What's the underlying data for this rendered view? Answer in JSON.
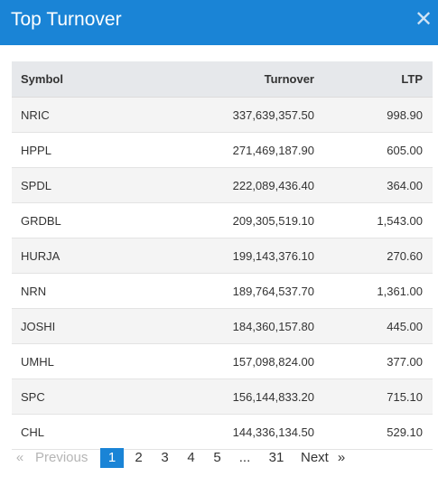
{
  "dialog": {
    "title": "Top Turnover",
    "close_icon": "close-icon"
  },
  "table": {
    "headers": {
      "symbol": "Symbol",
      "turnover": "Turnover",
      "ltp": "LTP"
    },
    "rows": [
      {
        "symbol": "NRIC",
        "turnover": "337,639,357.50",
        "ltp": "998.90"
      },
      {
        "symbol": "HPPL",
        "turnover": "271,469,187.90",
        "ltp": "605.00"
      },
      {
        "symbol": "SPDL",
        "turnover": "222,089,436.40",
        "ltp": "364.00"
      },
      {
        "symbol": "GRDBL",
        "turnover": "209,305,519.10",
        "ltp": "1,543.00"
      },
      {
        "symbol": "HURJA",
        "turnover": "199,143,376.10",
        "ltp": "270.60"
      },
      {
        "symbol": "NRN",
        "turnover": "189,764,537.70",
        "ltp": "1,361.00"
      },
      {
        "symbol": "JOSHI",
        "turnover": "184,360,157.80",
        "ltp": "445.00"
      },
      {
        "symbol": "UMHL",
        "turnover": "157,098,824.00",
        "ltp": "377.00"
      },
      {
        "symbol": "SPC",
        "turnover": "156,144,833.20",
        "ltp": "715.10"
      },
      {
        "symbol": "CHL",
        "turnover": "144,336,134.50",
        "ltp": "529.10"
      }
    ]
  },
  "pagination": {
    "first_arrow": "«",
    "previous": "Previous",
    "current": "1",
    "pages": [
      "2",
      "3",
      "4",
      "5"
    ],
    "ellipsis": "...",
    "last": "31",
    "next": "Next",
    "last_arrow": "»"
  },
  "colors": {
    "header_bg": "#1a84d6",
    "active_page": "#1a84d6"
  }
}
